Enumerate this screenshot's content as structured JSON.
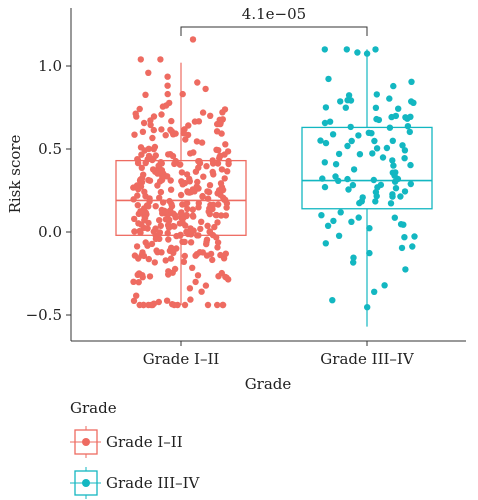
{
  "chart_data": {
    "type": "box",
    "xlabel": "Grade",
    "ylabel": "Risk score",
    "ylim": [
      -0.6,
      1.25
    ],
    "yticks": [
      -0.5,
      0.0,
      0.5,
      1.0
    ],
    "ytick_labels": [
      "−0.5",
      "0.0",
      "0.5",
      "1.0"
    ],
    "categories": [
      "Grade I–II",
      "Grade III–IV"
    ],
    "series": [
      {
        "name": "Grade I–II",
        "color": "#EE6B61",
        "box": {
          "min": -0.44,
          "q1": -0.02,
          "median": 0.19,
          "q3": 0.43,
          "max": 1.02
        },
        "outliers": [
          1.16
        ],
        "n_points": 360,
        "points_range": [
          -0.44,
          1.04
        ]
      },
      {
        "name": "Grade III–IV",
        "color": "#13B7C1",
        "box": {
          "min": -0.57,
          "q1": 0.14,
          "median": 0.31,
          "q3": 0.63,
          "max": 1.1
        },
        "outliers": [],
        "n_points": 110,
        "points_range": [
          -0.57,
          1.1
        ]
      }
    ],
    "annotation": {
      "text": "4.1e−05",
      "between": [
        "Grade I–II",
        "Grade III–IV"
      ]
    },
    "legend": {
      "title": "Grade",
      "placement": "bottom-left",
      "items": [
        "Grade I–II",
        "Grade III–IV"
      ]
    }
  }
}
